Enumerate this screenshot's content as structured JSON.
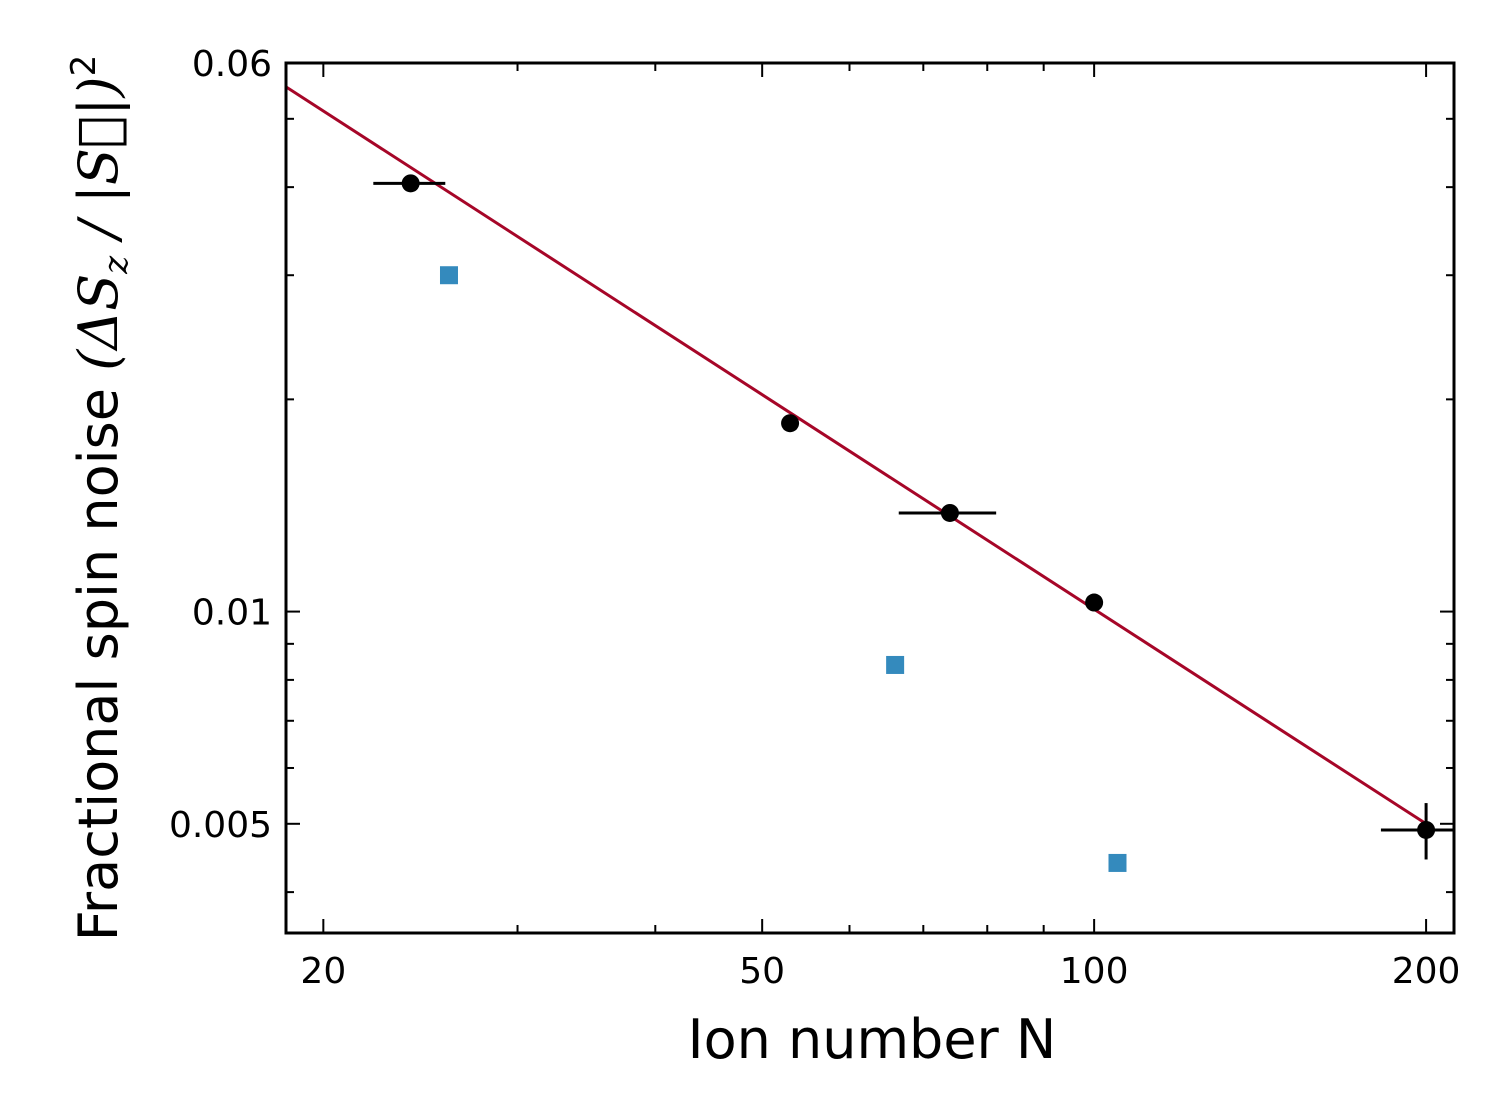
{
  "chart_data": {
    "type": "scatter",
    "x_scale": "log",
    "y_scale": "log",
    "xlabel": "Ion number N",
    "ylabel": "Fractional spin noise",
    "xlim": [
      18.5,
      212
    ],
    "ylim": [
      0.0035,
      0.06
    ],
    "x_tick_labels": [
      {
        "value": 20,
        "label": "20"
      },
      {
        "value": 50,
        "label": "50"
      },
      {
        "value": 100,
        "label": "100"
      },
      {
        "value": 200,
        "label": "200"
      }
    ],
    "x_minor_ticks": [
      30,
      40,
      60,
      70,
      80,
      90
    ],
    "y_tick_labels": [
      {
        "value": 0.06,
        "label": "0.06"
      },
      {
        "value": 0.01,
        "label": "0.01"
      },
      {
        "value": 0.005,
        "label": "0.005"
      }
    ],
    "y_minor_ticks": [
      0.004,
      0.006,
      0.007,
      0.008,
      0.009,
      0.02,
      0.03,
      0.04,
      0.05
    ],
    "series": [
      {
        "marker": "circle",
        "color": "#000000",
        "points": [
          {
            "x": 24,
            "y": 0.0405,
            "xerr": 1.2,
            "yerr": 0
          },
          {
            "x": 53,
            "y": 0.0185,
            "xerr": 0,
            "yerr": 0
          },
          {
            "x": 74,
            "y": 0.0138,
            "xerr": 5,
            "yerr": 0
          },
          {
            "x": 100,
            "y": 0.0103,
            "xerr": 0,
            "yerr": 0
          },
          {
            "x": 200,
            "y": 0.0049,
            "xerr": 12,
            "yerr": 0.00045
          }
        ]
      },
      {
        "marker": "square",
        "color": "#348abd",
        "points": [
          {
            "x": 26,
            "y": 0.03
          },
          {
            "x": 66,
            "y": 0.0084
          },
          {
            "x": 105,
            "y": 0.0044
          }
        ]
      },
      {
        "type": "line",
        "color": "#a60628",
        "points": [
          {
            "x": 18.5,
            "y": 0.0555
          },
          {
            "x": 200,
            "y": 0.005
          }
        ]
      }
    ]
  }
}
